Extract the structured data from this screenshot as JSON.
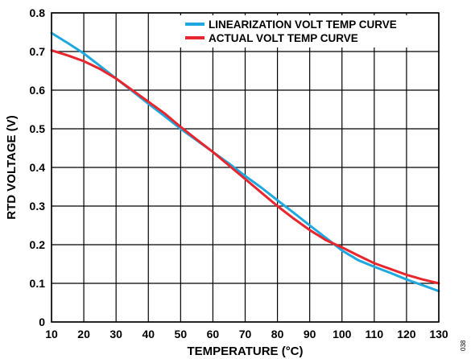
{
  "figure_id": "038",
  "chart_data": {
    "type": "line",
    "xlabel": "TEMPERATURE (°C)",
    "ylabel": "RTD VOLTAGE (V)",
    "xlim": [
      10,
      130
    ],
    "ylim": [
      0,
      0.8
    ],
    "x_ticks": [
      10,
      20,
      30,
      40,
      50,
      60,
      70,
      80,
      90,
      100,
      110,
      120,
      130
    ],
    "y_ticks": [
      0,
      0.1,
      0.2,
      0.3,
      0.4,
      0.5,
      0.6,
      0.7,
      0.8
    ],
    "grid": true,
    "legend_position": "top-right",
    "series": [
      {
        "name": "LINEARIZATION VOLT TEMP CURVE",
        "color": "#1fa8e0",
        "x": [
          10,
          15,
          20,
          25,
          30,
          35,
          40,
          45,
          50,
          55,
          60,
          65,
          70,
          75,
          80,
          85,
          90,
          95,
          100,
          105,
          110,
          115,
          120,
          125,
          130
        ],
        "y": [
          0.748,
          0.722,
          0.695,
          0.663,
          0.63,
          0.598,
          0.565,
          0.533,
          0.5,
          0.47,
          0.44,
          0.41,
          0.378,
          0.348,
          0.315,
          0.283,
          0.25,
          0.218,
          0.185,
          0.16,
          0.143,
          0.127,
          0.11,
          0.095,
          0.08
        ]
      },
      {
        "name": "ACTUAL VOLT TEMP CURVE",
        "color": "#e8262d",
        "x": [
          10,
          15,
          20,
          25,
          30,
          35,
          40,
          45,
          50,
          55,
          60,
          65,
          70,
          75,
          80,
          85,
          90,
          95,
          100,
          105,
          110,
          115,
          120,
          125,
          130
        ],
        "y": [
          0.703,
          0.69,
          0.675,
          0.655,
          0.63,
          0.6,
          0.57,
          0.54,
          0.505,
          0.472,
          0.44,
          0.405,
          0.37,
          0.335,
          0.3,
          0.268,
          0.238,
          0.212,
          0.193,
          0.172,
          0.152,
          0.137,
          0.122,
          0.11,
          0.1
        ]
      }
    ]
  }
}
